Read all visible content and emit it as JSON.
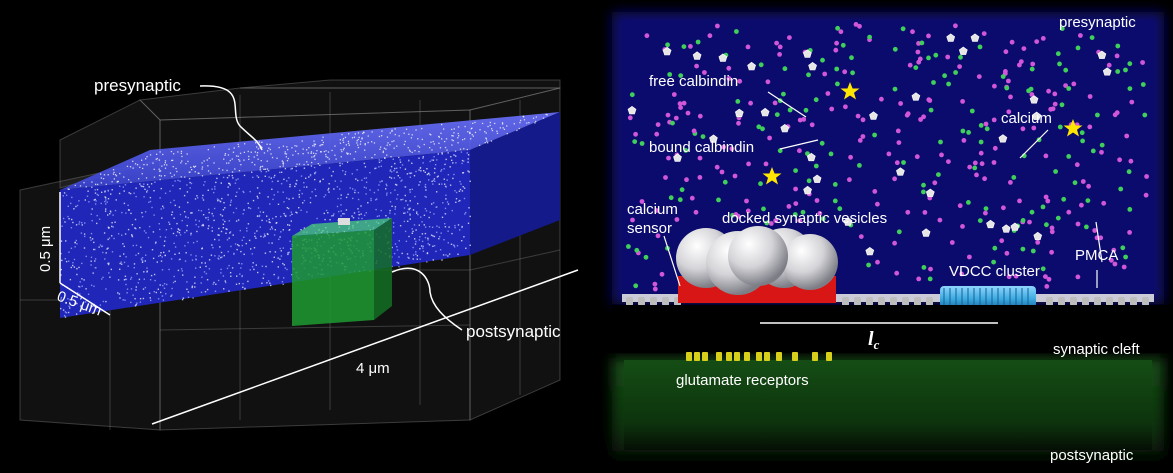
{
  "left_panel": {
    "labels": {
      "presynaptic": "presynaptic",
      "postsynaptic": "postsynaptic",
      "height": "0.5 μm",
      "depth": "0.5 μm",
      "length": "4 μm"
    }
  },
  "right_panel": {
    "labels": {
      "presynaptic": "presynaptic",
      "free_calbindin": "free calbindin",
      "bound_calbindin": "bound calbindin",
      "calcium": "calcium",
      "calcium_sensor_line1": "calcium",
      "calcium_sensor_line2": "sensor",
      "docked_vesicles": "docked synaptic vesicles",
      "vdcc_cluster": "VDCC cluster",
      "pmca": "PMCA",
      "lc_letter": "l",
      "lc_sub": "c",
      "synaptic_cleft": "synaptic cleft",
      "glutamate_receptors": "glutamate receptors",
      "postsynaptic": "postsynaptic"
    }
  },
  "colors": {
    "presynaptic_fill": "#0b0b6e",
    "postsynaptic_fill": "#0e3a0e",
    "free_calbindin": "#3fcf5a",
    "bound_calbindin": "#d257d8",
    "calcium_star": "#ffe600",
    "sensor_red": "#d81616",
    "vdcc_blue": "#39a9e0",
    "glutamate_receptor": "#d8cf1a"
  }
}
